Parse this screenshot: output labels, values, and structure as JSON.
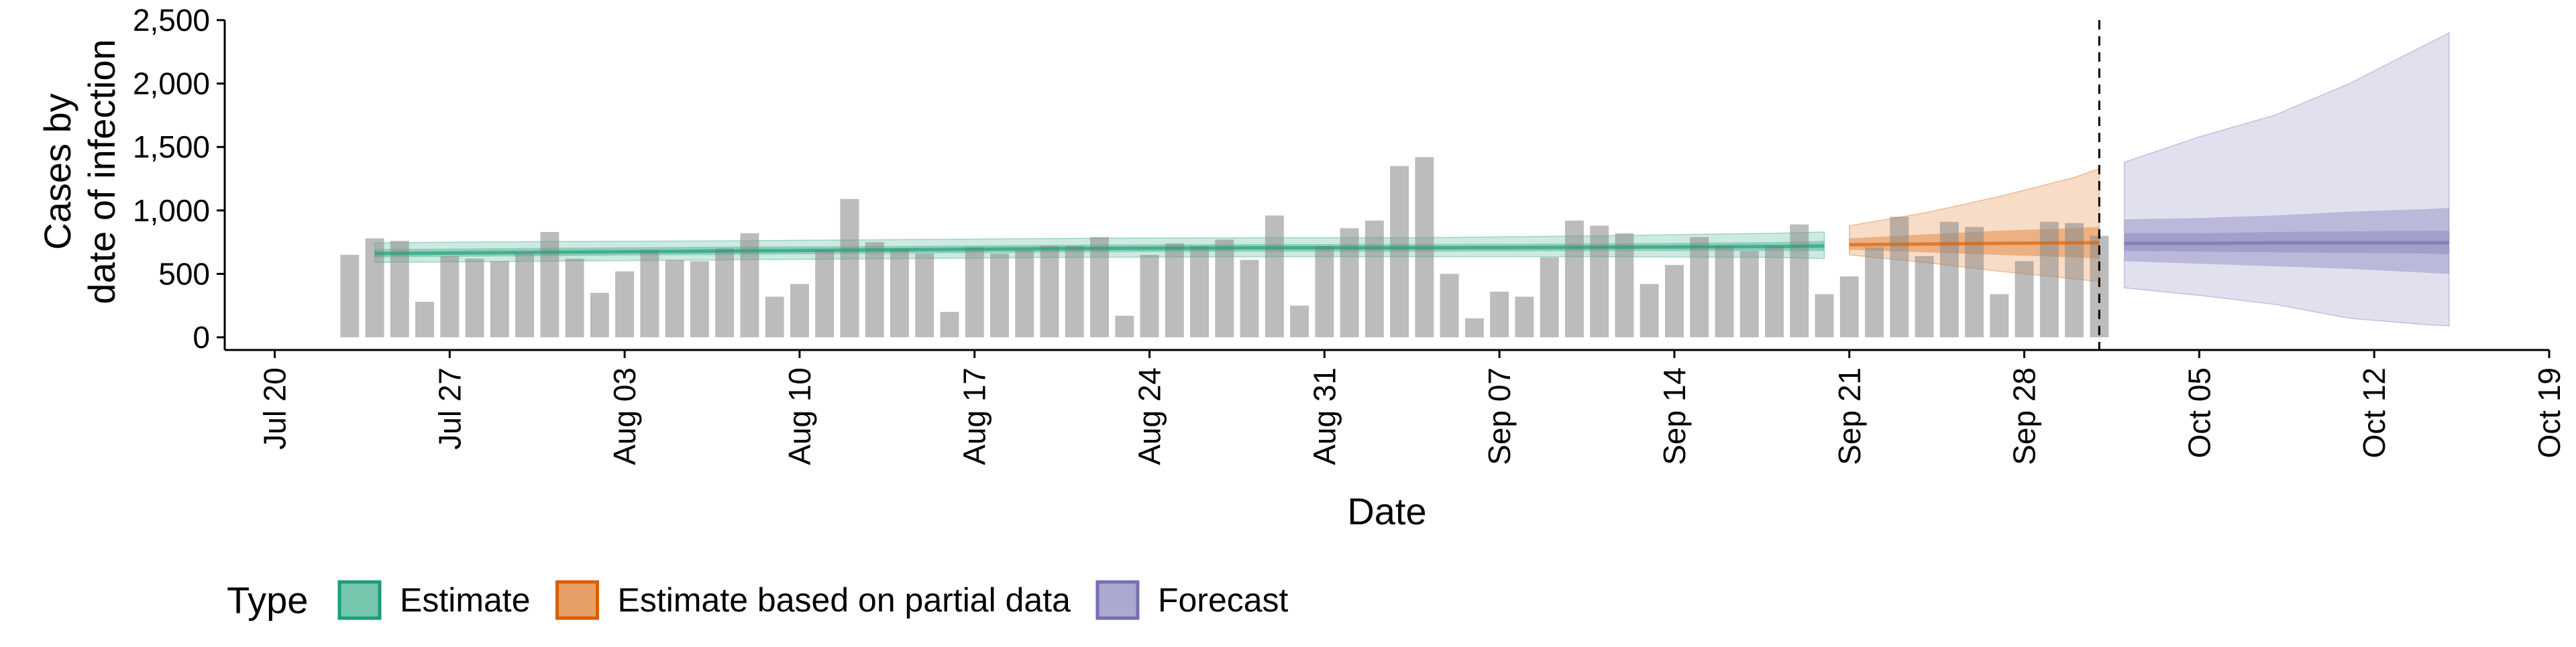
{
  "chart_data": {
    "type": "bar",
    "xlabel": "Date",
    "ylabel": "Cases by\ndate of infection",
    "x_ticks": [
      "Jul 20",
      "Jul 27",
      "Aug 03",
      "Aug 10",
      "Aug 17",
      "Aug 24",
      "Aug 31",
      "Sep 07",
      "Sep 14",
      "Sep 21",
      "Sep 28",
      "Oct 05",
      "Oct 12",
      "Oct 19"
    ],
    "y_ticks": [
      "0",
      "500",
      "1,000",
      "1,500",
      "2,000",
      "2,500"
    ],
    "y_tick_values": [
      0,
      500,
      1000,
      1500,
      2000,
      2500
    ],
    "ylim": [
      -100,
      2500
    ],
    "xlim": [
      "2020-07-18",
      "2020-10-19"
    ],
    "observed_cases": {
      "start_date": "2020-07-23",
      "values": [
        650,
        780,
        760,
        280,
        640,
        620,
        600,
        660,
        830,
        620,
        350,
        520,
        690,
        610,
        600,
        700,
        820,
        320,
        420,
        690,
        1090,
        750,
        700,
        660,
        200,
        710,
        660,
        690,
        720,
        720,
        790,
        170,
        650,
        740,
        720,
        770,
        610,
        960,
        250,
        720,
        860,
        920,
        1350,
        1420,
        500,
        150,
        360,
        320,
        630,
        920,
        880,
        820,
        420,
        570,
        790,
        720,
        680,
        720,
        890,
        340,
        480,
        710,
        950,
        640,
        910,
        870,
        340,
        600,
        910,
        900,
        800
      ]
    },
    "forecast_start_marker": "2020-10-01",
    "legend": {
      "title": "Type",
      "position": "bottom",
      "entries": [
        {
          "label": "Estimate",
          "color": "#1b9e77"
        },
        {
          "label": "Estimate based on partial data",
          "color": "#d95f02"
        },
        {
          "label": "Forecast",
          "color": "#7570b3"
        }
      ]
    },
    "series": [
      {
        "name": "Estimate",
        "color": "#1b9e77",
        "x": [
          "2020-07-24",
          "2020-07-31",
          "2020-08-07",
          "2020-08-14",
          "2020-08-21",
          "2020-08-28",
          "2020-09-04",
          "2020-09-11",
          "2020-09-18",
          "2020-09-20"
        ],
        "median": [
          660,
          670,
          680,
          690,
          700,
          705,
          705,
          710,
          715,
          720
        ],
        "ci90": [
          [
            590,
            745
          ],
          [
            600,
            755
          ],
          [
            610,
            760
          ],
          [
            620,
            770
          ],
          [
            630,
            780
          ],
          [
            635,
            785
          ],
          [
            635,
            785
          ],
          [
            635,
            800
          ],
          [
            630,
            820
          ],
          [
            620,
            830
          ]
        ],
        "ci50": [
          [
            630,
            695
          ],
          [
            640,
            705
          ],
          [
            650,
            715
          ],
          [
            660,
            720
          ],
          [
            670,
            730
          ],
          [
            675,
            735
          ],
          [
            675,
            735
          ],
          [
            680,
            740
          ],
          [
            680,
            750
          ],
          [
            680,
            760
          ]
        ]
      },
      {
        "name": "Estimate based on partial data",
        "color": "#d95f02",
        "x": [
          "2020-09-21",
          "2020-09-24",
          "2020-09-27",
          "2020-09-30",
          "2020-10-01"
        ],
        "median": [
          730,
          735,
          740,
          745,
          745
        ],
        "ci90": [
          [
            650,
            880
          ],
          [
            590,
            980
          ],
          [
            520,
            1110
          ],
          [
            460,
            1260
          ],
          [
            440,
            1330
          ]
        ],
        "ci50": [
          [
            690,
            780
          ],
          [
            670,
            810
          ],
          [
            650,
            840
          ],
          [
            630,
            860
          ],
          [
            620,
            870
          ]
        ]
      },
      {
        "name": "Forecast",
        "color": "#7570b3",
        "x": [
          "2020-10-02",
          "2020-10-05",
          "2020-10-08",
          "2020-10-11",
          "2020-10-14",
          "2020-10-15"
        ],
        "median": [
          740,
          740,
          745,
          745,
          745,
          745
        ],
        "ci90": [
          [
            390,
            1380
          ],
          [
            330,
            1580
          ],
          [
            260,
            1750
          ],
          [
            150,
            2000
          ],
          [
            100,
            2300
          ],
          [
            90,
            2400
          ]
        ],
        "ci50": [
          [
            600,
            930
          ],
          [
            580,
            940
          ],
          [
            560,
            960
          ],
          [
            540,
            990
          ],
          [
            510,
            1010
          ],
          [
            500,
            1020
          ]
        ],
        "ci20": [
          [
            680,
            820
          ],
          [
            675,
            820
          ],
          [
            670,
            830
          ],
          [
            665,
            835
          ],
          [
            660,
            840
          ],
          [
            655,
            840
          ]
        ]
      }
    ]
  }
}
